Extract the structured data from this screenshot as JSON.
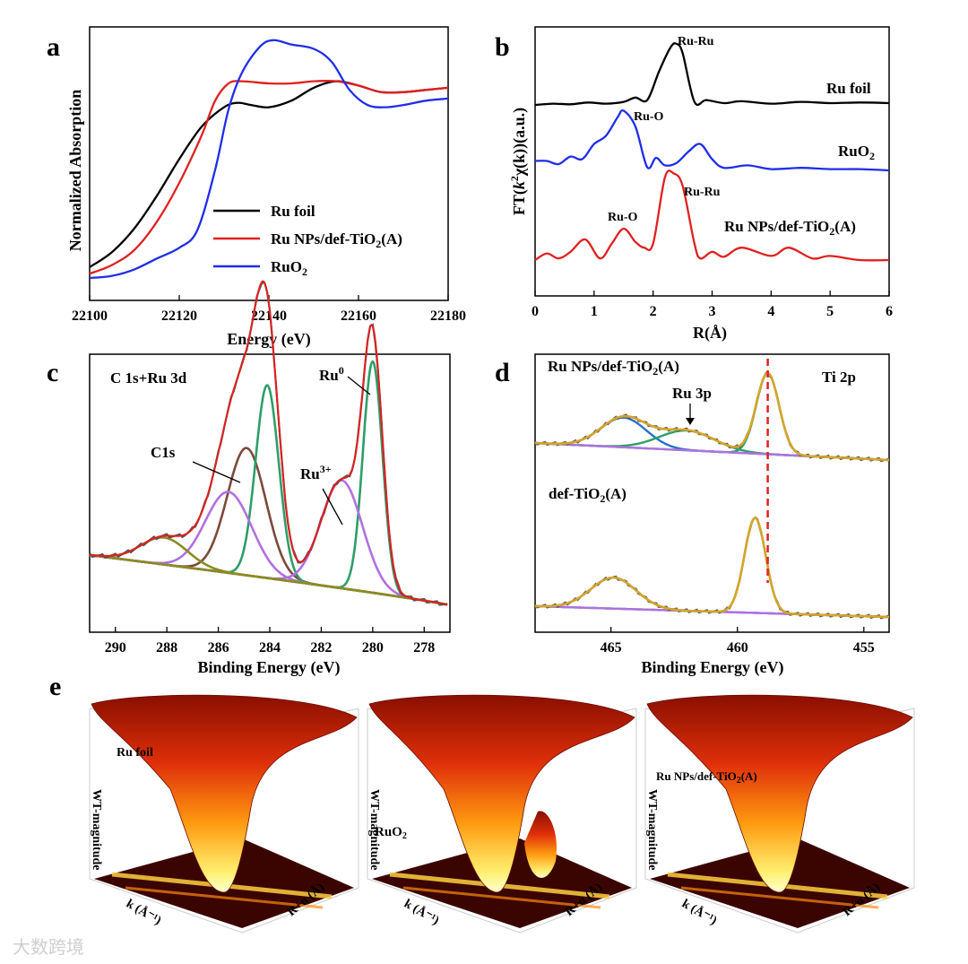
{
  "chart_data": [
    {
      "panel": "a",
      "type": "line",
      "title": "",
      "xlabel": "Energy (eV)",
      "ylabel": "Normalized Absorption",
      "xlim": [
        22100,
        22180
      ],
      "xticks": [
        "22100",
        "22120",
        "22140",
        "22160",
        "22180"
      ],
      "legend_position": "bottom-right",
      "series": [
        {
          "name": "Ru foil",
          "color": "#000000",
          "x": [
            22100,
            22105,
            22110,
            22115,
            22120,
            22125,
            22130,
            22133,
            22136,
            22140,
            22145,
            22150,
            22155,
            22160,
            22165,
            22170,
            22175,
            22180
          ],
          "y": [
            0.05,
            0.12,
            0.23,
            0.38,
            0.55,
            0.7,
            0.79,
            0.81,
            0.8,
            0.79,
            0.82,
            0.88,
            0.91,
            0.89,
            0.86,
            0.86,
            0.87,
            0.88
          ]
        },
        {
          "name": "Ru NPs/def-TiO2(A)",
          "color": "#e02020",
          "x": [
            22100,
            22105,
            22110,
            22115,
            22120,
            22125,
            22128,
            22131,
            22134,
            22140,
            22145,
            22150,
            22155,
            22160,
            22165,
            22170,
            22175,
            22180
          ],
          "y": [
            0.02,
            0.06,
            0.13,
            0.26,
            0.44,
            0.66,
            0.82,
            0.9,
            0.91,
            0.9,
            0.9,
            0.91,
            0.91,
            0.89,
            0.86,
            0.86,
            0.87,
            0.88
          ]
        },
        {
          "name": "RuO2",
          "color": "#1f2ee8",
          "x": [
            22100,
            22105,
            22110,
            22115,
            22120,
            22124,
            22128,
            22131,
            22134,
            22138,
            22141,
            22145,
            22150,
            22154,
            22158,
            22162,
            22166,
            22170,
            22175,
            22180
          ],
          "y": [
            0.0,
            0.01,
            0.04,
            0.09,
            0.14,
            0.22,
            0.5,
            0.78,
            0.95,
            1.07,
            1.1,
            1.08,
            1.06,
            1.0,
            0.87,
            0.8,
            0.79,
            0.8,
            0.82,
            0.83
          ]
        }
      ],
      "legend": [
        {
          "label_pre": "Ru foil",
          "sub": "",
          "label_post": ""
        },
        {
          "label_pre": "Ru NPs/def-TiO",
          "sub": "2",
          "label_post": "(A)"
        },
        {
          "label_pre": "RuO",
          "sub": "2",
          "label_post": ""
        }
      ]
    },
    {
      "panel": "b",
      "type": "line",
      "title": "",
      "xlabel": "R(Å)",
      "ylabel_parts": {
        "pre": "FT(",
        "k": "k",
        "sup": "2",
        "mid": "χ(k))(a.u.)"
      },
      "xlim": [
        0,
        6
      ],
      "xticks": [
        "0",
        "1",
        "2",
        "3",
        "4",
        "5",
        "6"
      ],
      "series": [
        {
          "name": "Ru foil",
          "color": "#000000",
          "offset": 2.0,
          "x": [
            0,
            0.3,
            0.6,
            0.9,
            1.2,
            1.5,
            1.7,
            1.9,
            2.1,
            2.3,
            2.4,
            2.5,
            2.7,
            2.9,
            3.2,
            3.5,
            4.0,
            4.5,
            5.0,
            5.5,
            6.0
          ],
          "y": [
            0.0,
            0.02,
            0.01,
            0.04,
            0.02,
            0.05,
            0.12,
            0.08,
            0.55,
            0.95,
            1.0,
            0.85,
            0.05,
            0.08,
            0.03,
            0.06,
            0.02,
            0.05,
            0.03,
            0.04,
            0.03
          ]
        },
        {
          "name": "RuO2",
          "color": "#1f2ee8",
          "offset": 1.0,
          "x": [
            0,
            0.2,
            0.4,
            0.6,
            0.8,
            1.0,
            1.2,
            1.4,
            1.5,
            1.7,
            1.9,
            2.05,
            2.2,
            2.4,
            2.6,
            2.8,
            3.0,
            3.2,
            3.6,
            4.0,
            4.5,
            5.0,
            5.5,
            6.0
          ],
          "y": [
            0.15,
            0.15,
            0.1,
            0.22,
            0.18,
            0.42,
            0.55,
            0.85,
            0.95,
            0.7,
            0.05,
            0.2,
            0.08,
            0.12,
            0.3,
            0.42,
            0.18,
            0.04,
            0.08,
            0.02,
            0.04,
            0.02,
            0.02,
            0.0
          ]
        },
        {
          "name": "Ru NPs/def-TiO2(A)",
          "color": "#e02020",
          "offset": 0.0,
          "x": [
            0,
            0.2,
            0.4,
            0.6,
            0.85,
            1.1,
            1.3,
            1.5,
            1.7,
            1.85,
            2.0,
            2.2,
            2.35,
            2.5,
            2.7,
            2.8,
            3.0,
            3.2,
            3.5,
            4.0,
            4.3,
            4.7,
            5.0,
            5.5,
            6.0
          ],
          "y": [
            0.0,
            0.08,
            0.02,
            0.1,
            0.25,
            0.02,
            0.2,
            0.38,
            0.22,
            0.15,
            0.2,
            1.0,
            1.05,
            0.9,
            0.2,
            0.02,
            0.1,
            0.04,
            0.15,
            0.05,
            0.15,
            0.02,
            0.05,
            0.0,
            0.0
          ]
        }
      ],
      "annotations": {
        "ru_ru_1": "Ru-Ru",
        "ru_o_1": "Ru-O",
        "ru_o_2": "Ru-O",
        "ru_ru_2": "Ru-Ru"
      },
      "labels": {
        "foil": "Ru foil",
        "ruo2": {
          "pre": "RuO",
          "sub": "2",
          "post": ""
        },
        "npsl": {
          "pre": "Ru NPs/def-TiO",
          "sub": "2",
          "post": "(A)"
        }
      }
    },
    {
      "panel": "c",
      "type": "line",
      "title": "C 1s+Ru 3d",
      "xlabel": "Binding Energy (eV)",
      "xlim": [
        291,
        277
      ],
      "xticks": [
        "290",
        "288",
        "286",
        "284",
        "282",
        "280",
        "278"
      ],
      "peaks": [
        {
          "name": "C1s",
          "center": 284.9,
          "height": 0.66,
          "width": 0.75,
          "color": "#7a4a3a"
        },
        {
          "name": "",
          "center": 284.1,
          "height": 1.0,
          "width": 0.45,
          "color": "#2e9e6a"
        },
        {
          "name": "Ru0",
          "center": 280.0,
          "height": 1.2,
          "width": 0.38,
          "color": "#2e9e6a"
        },
        {
          "name": "Ru3+",
          "center": 281.2,
          "height": 0.56,
          "width": 0.8,
          "color": "#b071e0"
        },
        {
          "name": "",
          "center": 285.6,
          "height": 0.42,
          "width": 0.9,
          "color": "#b071e0"
        },
        {
          "name": "",
          "center": 288.1,
          "height": 0.14,
          "width": 0.9,
          "color": "#8b8b20"
        }
      ],
      "annotations": {
        "c1s": "C1s",
        "ru3_pre": "Ru",
        "ru3_sup": "3+",
        "ru0_pre": "Ru",
        "ru0_sup": "0"
      }
    },
    {
      "panel": "d",
      "type": "line",
      "title": "Ti 2p",
      "xlabel": "Binding Energy (eV)",
      "xlim": [
        468,
        454
      ],
      "xticks": [
        "465",
        "460",
        "455"
      ],
      "reference_line_ev": 458.8,
      "series": [
        {
          "name": "Ru NPs/def-TiO2(A)",
          "peaks": [
            {
              "center": 464.5,
              "height": 0.3,
              "width": 0.9,
              "color": "#2b6fd1"
            },
            {
              "center": 462.0,
              "height": 0.2,
              "width": 1.1,
              "color": "#2e9e6a"
            },
            {
              "center": 458.8,
              "height": 0.82,
              "width": 0.45,
              "color": "#2e9e6a"
            }
          ]
        },
        {
          "name": "def-TiO2(A)",
          "peaks": [
            {
              "center": 464.9,
              "height": 0.3,
              "width": 0.9,
              "color": "#2b6fd1"
            },
            {
              "center": 459.3,
              "height": 0.92,
              "width": 0.42,
              "color": "#2e9e6a"
            }
          ]
        }
      ],
      "annotations": {
        "ru3p": "Ru 3p"
      },
      "labels": {
        "top": {
          "pre": "Ru NPs/def-TiO",
          "sub": "2",
          "post": "(A)"
        },
        "bot": {
          "pre": "def-TiO",
          "sub": "2",
          "post": "(A)"
        }
      }
    },
    {
      "panel": "e",
      "type": "heatmap",
      "title": "",
      "zlabel": "WT-magnitude",
      "xlabel": "k (Å⁻¹)",
      "ylabel": "R+α (Å)",
      "plots": [
        {
          "name": "Ru foil",
          "pre": "Ru foil",
          "sub": "",
          "post": ""
        },
        {
          "name": "RuO2",
          "pre": "RuO",
          "sub": "2",
          "post": ""
        },
        {
          "name": "Ru NPs/def-TiO2(A)",
          "pre": "Ru NPs/def-TiO",
          "sub": "2",
          "post": "(A)"
        }
      ]
    }
  ],
  "panel_letters": {
    "a": "a",
    "b": "b",
    "c": "c",
    "d": "d",
    "e": "e"
  },
  "watermark": "大数跨境"
}
